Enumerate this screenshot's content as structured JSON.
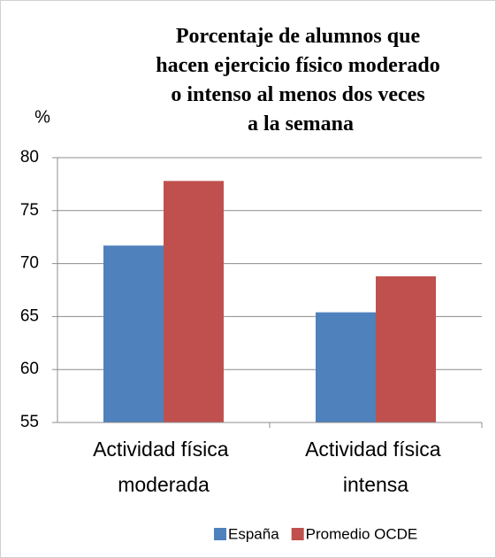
{
  "chart_data": {
    "type": "bar",
    "title": "Porcentaje de alumnos que hacen ejercicio físico moderado o intenso al menos dos veces a la semana",
    "y_label": "%",
    "categories": [
      "Actividad física moderada",
      "Actividad física intensa"
    ],
    "series": [
      {
        "name": "España",
        "color": "#4f81bd",
        "values": [
          71.7,
          65.4
        ]
      },
      {
        "name": "Promedio OCDE",
        "color": "#c0504d",
        "values": [
          77.8,
          68.8
        ]
      }
    ],
    "ylim": [
      55,
      80
    ],
    "yticks": [
      55,
      60,
      65,
      70,
      75,
      80
    ],
    "grid": true,
    "legend": "bottom"
  }
}
